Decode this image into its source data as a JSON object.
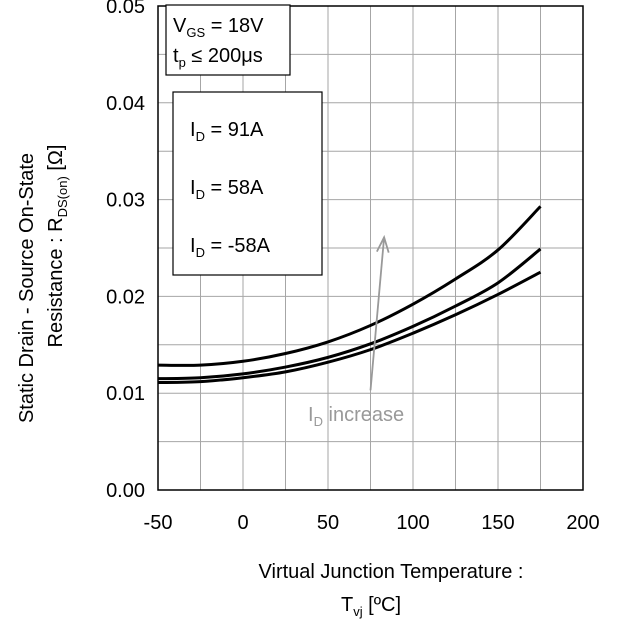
{
  "chart_data": {
    "type": "line",
    "xlabel_line1": "Virtual Junction Temperature :",
    "xlabel_line2_main": "T",
    "xlabel_line2_sub": "vj",
    "xlabel_line2_unit": " [ºC]",
    "ylabel_line1": "Static Drain - Source On-State",
    "ylabel_line2_main": "Resistance : R",
    "ylabel_line2_sub": "DS(on)",
    "ylabel_line2_unit": " [Ω]",
    "xlim": [
      -50,
      200
    ],
    "ylim": [
      0.0,
      0.05
    ],
    "x_ticks": [
      -50,
      0,
      50,
      100,
      150,
      200
    ],
    "x_tick_labels": [
      "-50",
      "0",
      "50",
      "100",
      "150",
      "200"
    ],
    "y_ticks": [
      0.0,
      0.01,
      0.02,
      0.03,
      0.04,
      0.05
    ],
    "y_tick_labels": [
      "0.00",
      "0.01",
      "0.02",
      "0.03",
      "0.04",
      "0.05"
    ],
    "grid": true,
    "x_minor_step": 25,
    "y_minor_step": 0.005,
    "series": [
      {
        "name": "I_D = 91A",
        "color": "#000000",
        "x": [
          -50,
          -25,
          0,
          25,
          50,
          75,
          100,
          125,
          150,
          175
        ],
        "y": [
          0.0129,
          0.0129,
          0.0133,
          0.0141,
          0.0153,
          0.017,
          0.0192,
          0.0218,
          0.0248,
          0.0293
        ]
      },
      {
        "name": "I_D = 58A",
        "color": "#000000",
        "x": [
          -50,
          -25,
          0,
          25,
          50,
          75,
          100,
          125,
          150,
          175
        ],
        "y": [
          0.0115,
          0.0116,
          0.012,
          0.0127,
          0.0137,
          0.0151,
          0.0169,
          0.019,
          0.0214,
          0.0249
        ]
      },
      {
        "name": "I_D = -58A",
        "color": "#000000",
        "x": [
          -50,
          -25,
          0,
          25,
          50,
          75,
          100,
          125,
          150,
          175
        ],
        "y": [
          0.0111,
          0.0112,
          0.0116,
          0.0122,
          0.0132,
          0.0145,
          0.0162,
          0.0181,
          0.0202,
          0.0225
        ]
      }
    ],
    "annotations": {
      "conditions_line1_main": "V",
      "conditions_line1_sub": "GS",
      "conditions_line1_rest": " = 18V",
      "conditions_line2_main": "t",
      "conditions_line2_sub": "p",
      "conditions_line2_rest": " ≤ 200μs",
      "legend_entries": [
        {
          "main": "I",
          "sub": "D",
          "rest": " = 91A"
        },
        {
          "main": "I",
          "sub": "D",
          "rest": " = 58A"
        },
        {
          "main": "I",
          "sub": "D",
          "rest": " = -58A"
        }
      ],
      "arrow_label_main": "I",
      "arrow_label_sub": "D",
      "arrow_label_rest": " increase",
      "arrow_color": "#999999",
      "arrow_from": {
        "x": 75,
        "y": 0.0103
      },
      "arrow_to": {
        "x": 83,
        "y": 0.0261
      }
    }
  }
}
